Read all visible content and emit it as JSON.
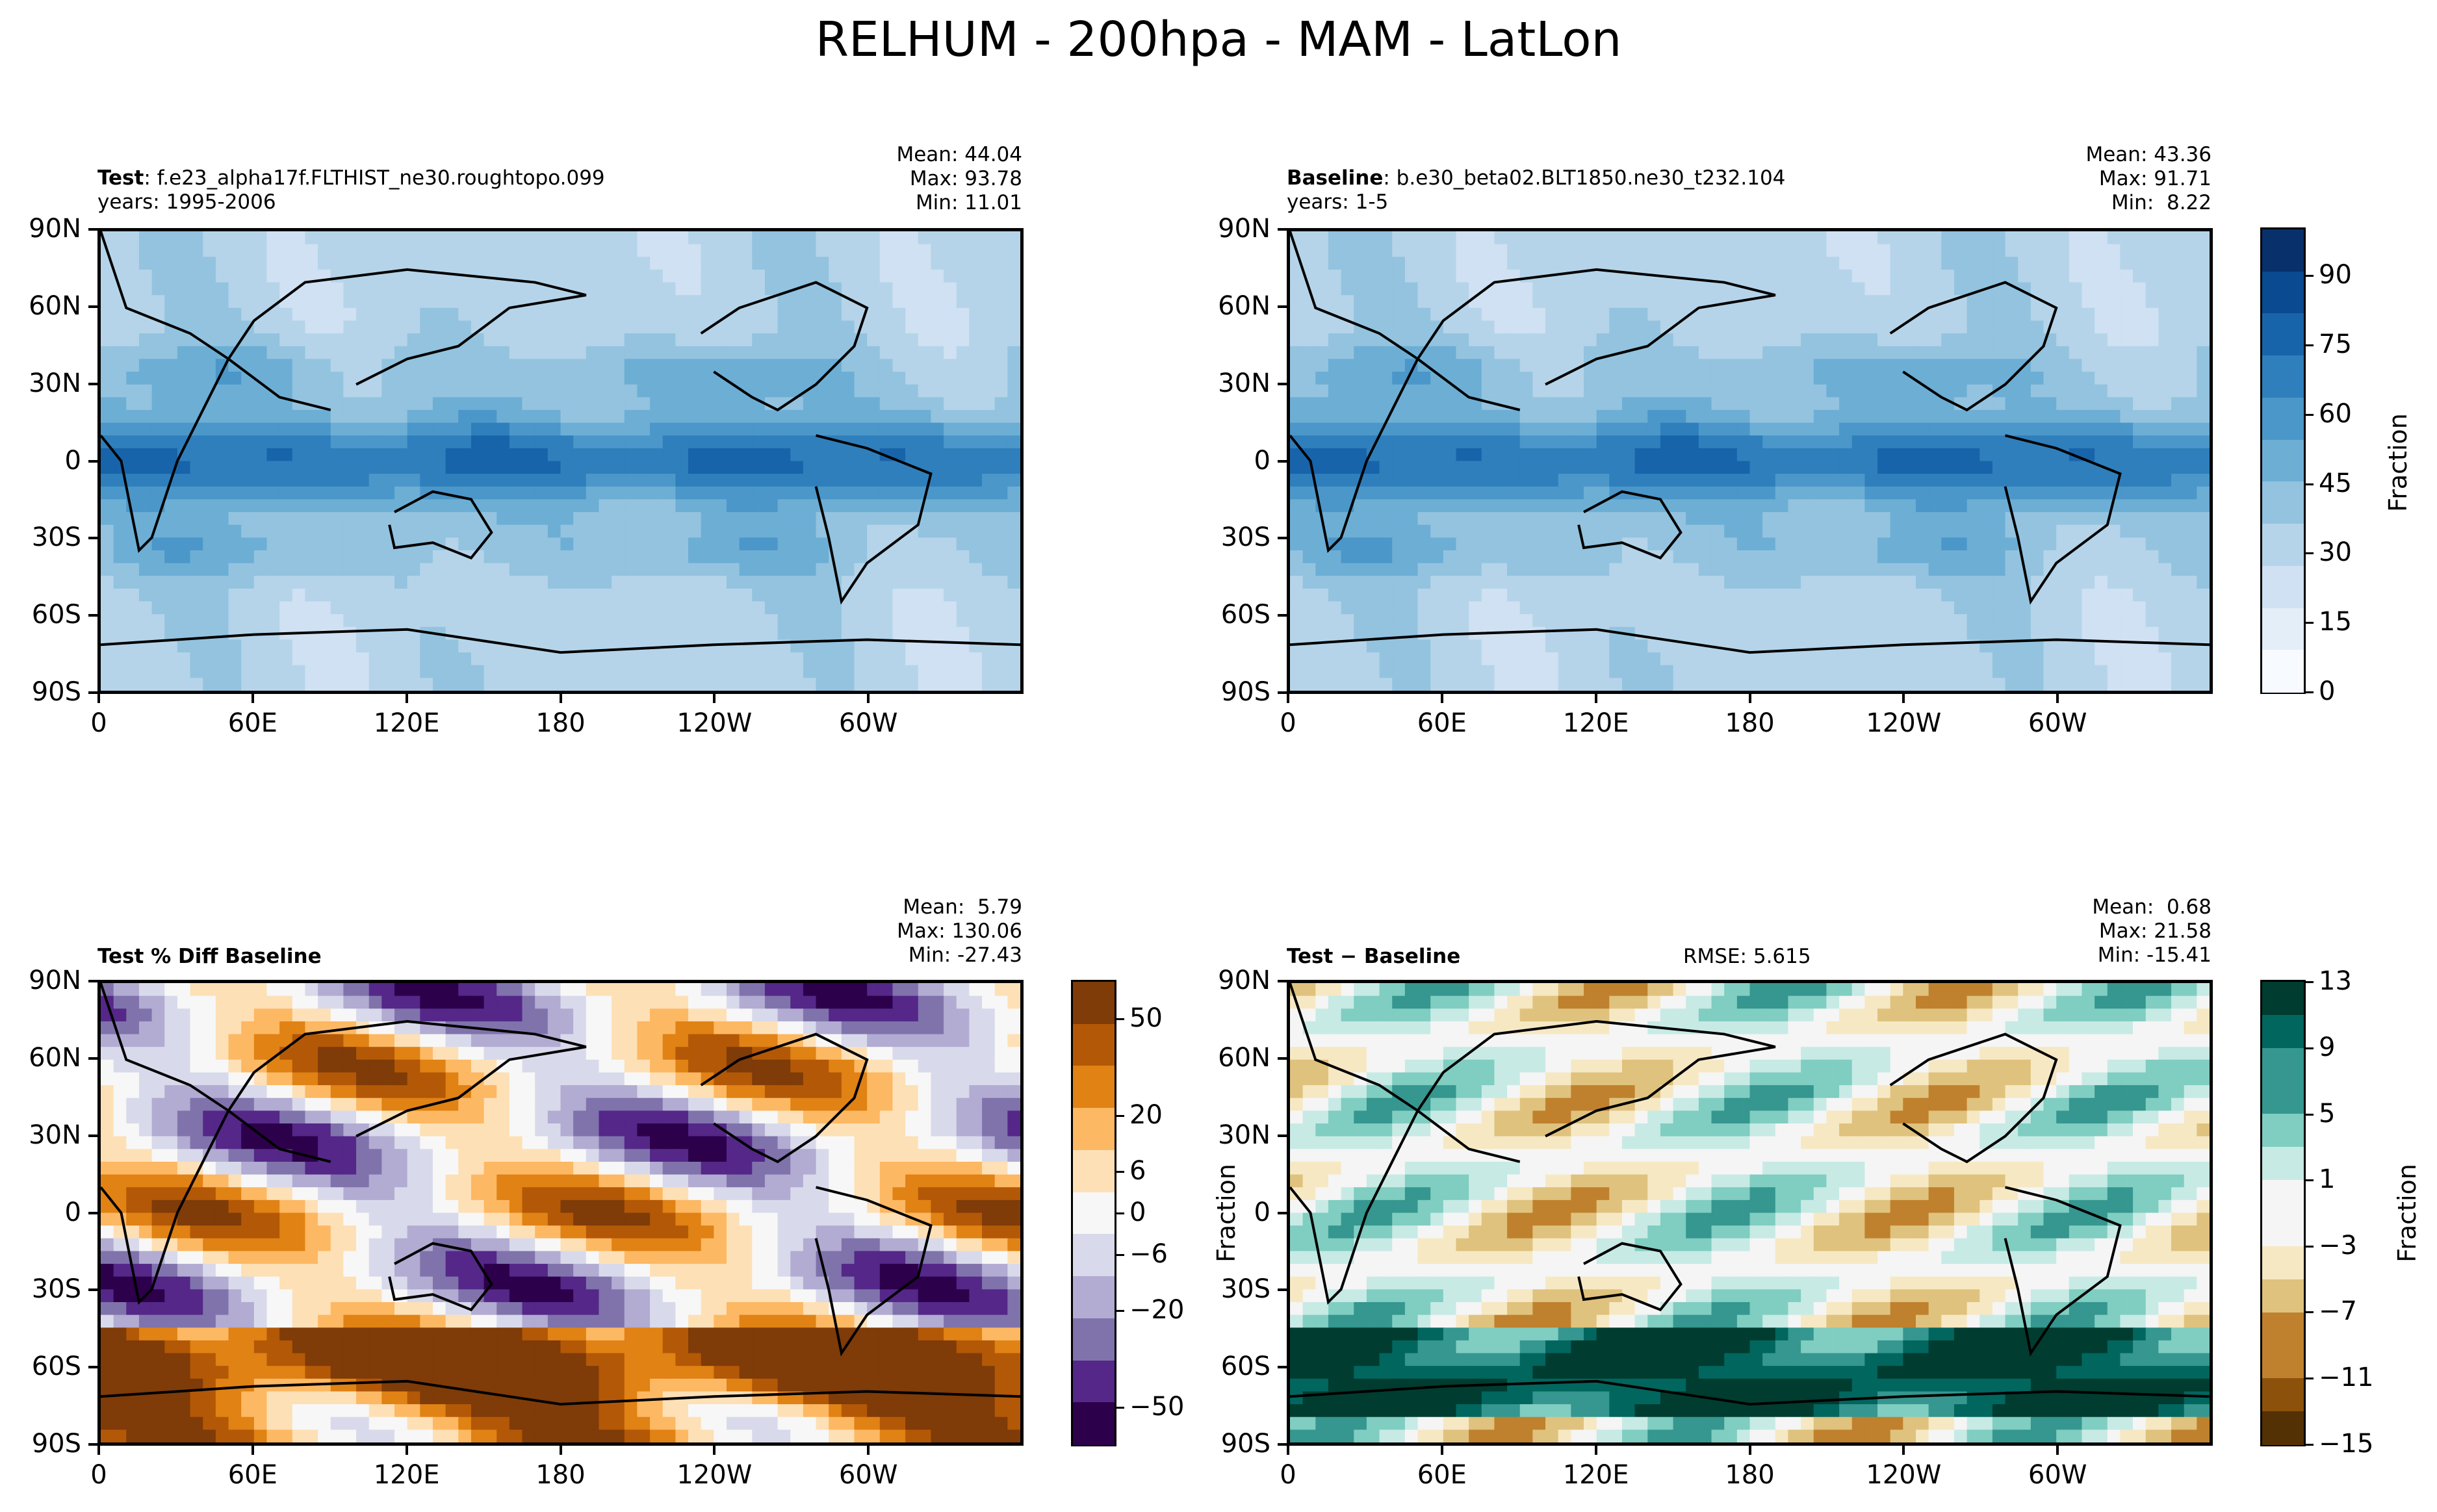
{
  "suptitle": "RELHUM - 200hpa - MAM - LatLon",
  "colors": {
    "blues": [
      "#f7fbff",
      "#e3eef9",
      "#cfe1f2",
      "#b5d4e9",
      "#93c3df",
      "#6daed5",
      "#4b97c9",
      "#2f7fbc",
      "#1864aa",
      "#0a4a90",
      "#08306b"
    ],
    "puor": [
      "#2d004b",
      "#542788",
      "#8073ac",
      "#b2abd2",
      "#d8daeb",
      "#f7f7f7",
      "#fee0b6",
      "#fdb863",
      "#e08214",
      "#b35806",
      "#7f3b08"
    ],
    "brbg": [
      "#543005",
      "#8c510a",
      "#bf812d",
      "#dfc27d",
      "#f6e8c3",
      "#f5f5f5",
      "#c7eae5",
      "#80cdc1",
      "#35978f",
      "#01665e",
      "#003c30"
    ]
  },
  "panels": {
    "test": {
      "title_bold": "Test",
      "title_rest": ": f.e23_alpha17f.FLTHIST_ne30.roughtopo.099",
      "years": "years: 1995-2006",
      "mean": "Mean: 44.04",
      "max": "Max: 93.78",
      "min": "Min: 11.01"
    },
    "baseline": {
      "title_bold": "Baseline",
      "title_rest": ": b.e30_beta02.BLT1850.ne30_t232.104",
      "years": "years: 1-5",
      "mean": "Mean: 43.36",
      "max": "Max: 91.71",
      "min": "Min:  8.22"
    },
    "pctdiff": {
      "title_bold": "Test % Diff Baseline",
      "mean": "Mean:  5.79",
      "max": "Max: 130.06",
      "min": "Min: -27.43"
    },
    "diff": {
      "title_bold": "Test − Baseline",
      "rmse": "RMSE: 5.615",
      "mean": "Mean:  0.68",
      "max": "Max: 21.58",
      "min": "Min: -15.41",
      "ylabel": "Fraction"
    }
  },
  "chart_data": [
    {
      "type": "heatmap",
      "name": "Test",
      "title": "Test: f.e23_alpha17f.FLTHIST_ne30.roughtopo.099",
      "variable": "RELHUM",
      "units": "Fraction",
      "stats": {
        "mean": 44.04,
        "max": 93.78,
        "min": 11.01
      },
      "x_ticks": [
        "0",
        "60E",
        "120E",
        "180",
        "120W",
        "60W"
      ],
      "y_ticks": [
        "90N",
        "60N",
        "30N",
        "0",
        "30S",
        "60S",
        "90S"
      ],
      "xlim": [
        0,
        360
      ],
      "ylim": [
        -90,
        90
      ]
    },
    {
      "type": "heatmap",
      "name": "Baseline",
      "title": "Baseline: b.e30_beta02.BLT1850.ne30_t232.104",
      "variable": "RELHUM",
      "units": "Fraction",
      "stats": {
        "mean": 43.36,
        "max": 91.71,
        "min": 8.22
      },
      "x_ticks": [
        "0",
        "60E",
        "120E",
        "180",
        "120W",
        "60W"
      ],
      "y_ticks": [
        "90N",
        "60N",
        "30N",
        "0",
        "30S",
        "60S",
        "90S"
      ],
      "colorbar": {
        "label": "Fraction",
        "range": [
          0,
          100
        ],
        "ticks": [
          "0",
          "15",
          "30",
          "45",
          "60",
          "75",
          "90"
        ]
      }
    },
    {
      "type": "heatmap",
      "name": "Test % Diff Baseline",
      "stats": {
        "mean": 5.79,
        "max": 130.06,
        "min": -27.43
      },
      "x_ticks": [
        "0",
        "60E",
        "120E",
        "180",
        "120W",
        "60W"
      ],
      "y_ticks": [
        "90N",
        "60N",
        "30N",
        "0",
        "30S",
        "60S",
        "90S"
      ],
      "colorbar": {
        "ticks": [
          "50",
          "20",
          "6",
          "0",
          "−6",
          "−20",
          "−50"
        ]
      }
    },
    {
      "type": "heatmap",
      "name": "Test − Baseline",
      "stats": {
        "mean": 0.68,
        "max": 21.58,
        "min": -15.41,
        "rmse": 5.615
      },
      "x_ticks": [
        "0",
        "60E",
        "120E",
        "180",
        "120W",
        "60W"
      ],
      "y_ticks": [
        "90N",
        "60N",
        "30N",
        "0",
        "30S",
        "60S",
        "90S"
      ],
      "colorbar": {
        "label": "Fraction",
        "range": [
          -15,
          13
        ],
        "ticks": [
          "13",
          "9",
          "5",
          "1",
          "−3",
          "−7",
          "−11",
          "−15"
        ]
      }
    }
  ],
  "ticks": {
    "x": [
      "0",
      "60E",
      "120E",
      "180",
      "120W",
      "60W"
    ],
    "y": [
      "90N",
      "60N",
      "30N",
      "0",
      "30S",
      "60S",
      "90S"
    ]
  },
  "colorbars": {
    "top": {
      "label": "Fraction",
      "ticks": [
        "90",
        "75",
        "60",
        "45",
        "30",
        "15",
        "0"
      ]
    },
    "pct": {
      "ticks": [
        "50",
        "20",
        "6",
        "0",
        "−6",
        "−20",
        "−50"
      ]
    },
    "diff": {
      "label": "Fraction",
      "ticks": [
        "13",
        "9",
        "5",
        "1",
        "−3",
        "−7",
        "−11",
        "−15"
      ]
    }
  }
}
